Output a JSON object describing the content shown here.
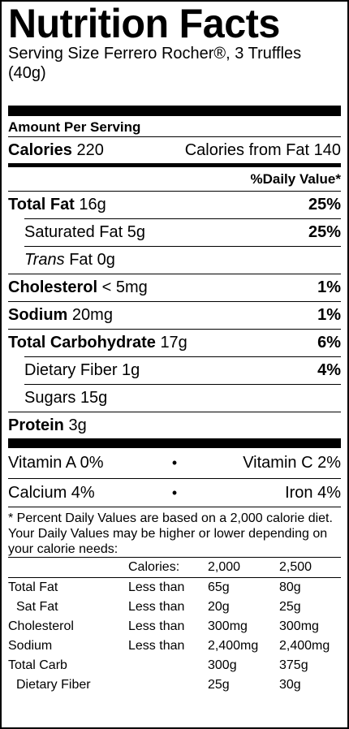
{
  "title": "Nutrition Facts",
  "serving_size": "Serving Size Ferrero Rocher®, 3 Truffles (40g)",
  "amount_per_serving": "Amount Per Serving",
  "calories": {
    "label": "Calories",
    "value": "220",
    "from_fat_label": "Calories from Fat",
    "from_fat_value": "140"
  },
  "daily_value_header": "%Daily Value*",
  "nutrients": [
    {
      "label": "Total Fat",
      "value": "16g",
      "dv": "25%"
    },
    {
      "label": "Saturated Fat",
      "value": "5g",
      "dv": "25%"
    },
    {
      "label_italic": "Trans",
      "label": "Fat",
      "value": "0g",
      "dv": ""
    },
    {
      "label": "Cholesterol",
      "value": "< 5mg",
      "dv": "1%"
    },
    {
      "label": "Sodium",
      "value": "20mg",
      "dv": "1%"
    },
    {
      "label": "Total Carbohydrate",
      "value": "17g",
      "dv": "6%"
    },
    {
      "label": "Dietary Fiber",
      "value": "1g",
      "dv": "4%"
    },
    {
      "label": "Sugars",
      "value": "15g",
      "dv": ""
    },
    {
      "label": "Protein",
      "value": "3g",
      "dv": ""
    }
  ],
  "vitamins": [
    {
      "left": "Vitamin A 0%",
      "dot": "•",
      "right": "Vitamin C 2%"
    },
    {
      "left": "Calcium 4%",
      "dot": "•",
      "right": "Iron 4%"
    }
  ],
  "footnote": "* Percent Daily Values are based on a 2,000 calorie diet. Your Daily Values may be higher or lower depending on your calorie needs:",
  "footnote_table": {
    "header": [
      "",
      "Calories:",
      "2,000",
      "2,500"
    ],
    "rows": [
      [
        "Total Fat",
        "Less than",
        "65g",
        "80g"
      ],
      [
        "Sat Fat",
        "Less than",
        "20g",
        "25g"
      ],
      [
        "Cholesterol",
        "Less than",
        "300mg",
        "300mg"
      ],
      [
        "Sodium",
        "Less than",
        "2,400mg",
        "2,400mg"
      ],
      [
        "Total Carb",
        "",
        "300g",
        "375g"
      ],
      [
        "Dietary Fiber",
        "",
        "25g",
        "30g"
      ]
    ]
  }
}
